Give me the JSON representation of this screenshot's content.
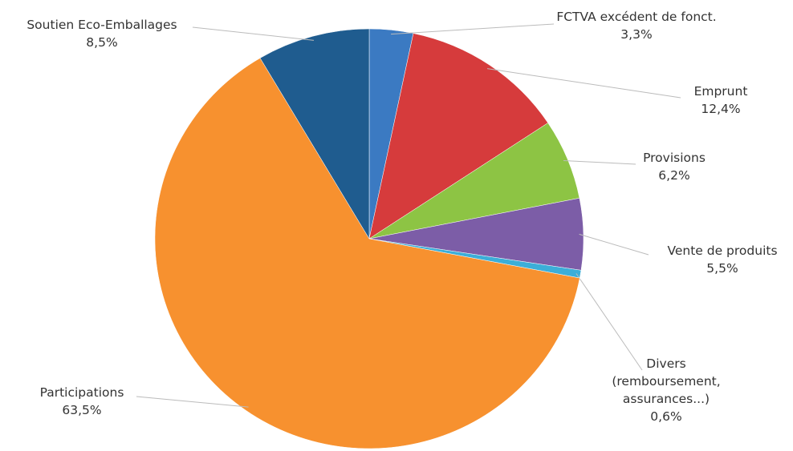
{
  "chart_data": {
    "type": "pie",
    "categories": [
      "FCTVA excédent de fonct.",
      "Emprunt",
      "Provisions",
      "Vente de produits",
      "Divers (remboursement, assurances...)",
      "Participations",
      "Soutien Eco-Emballages"
    ],
    "values": [
      3.3,
      12.4,
      6.2,
      5.5,
      0.6,
      63.5,
      8.5
    ],
    "value_labels": [
      "3,3%",
      "12,4%",
      "6,2%",
      "5,5%",
      "0,6%",
      "63,5%",
      "8,5%"
    ],
    "colors": [
      "#3b7ac2",
      "#d63b3c",
      "#8dc444",
      "#7c5da7",
      "#3caed8",
      "#f7912f",
      "#1f5c8f"
    ]
  }
}
